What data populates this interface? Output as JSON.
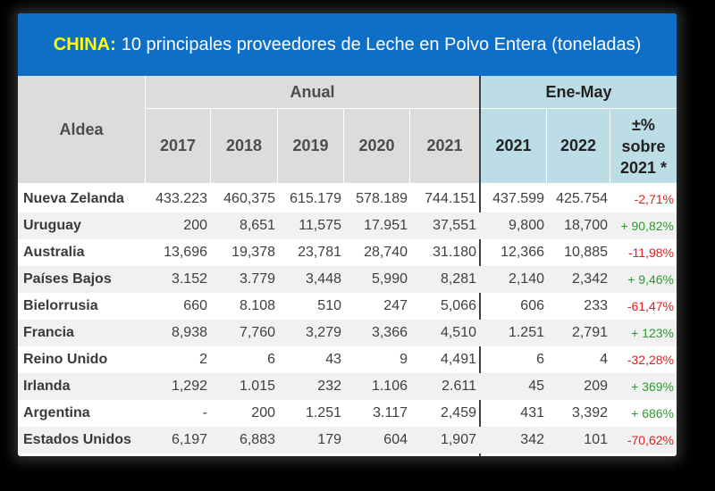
{
  "title": {
    "country": "CHINA:",
    "text": "10 principales proveedores de Leche en Polvo Entera (toneladas)"
  },
  "header": {
    "row_label": "Aldea",
    "annual_group": "Anual",
    "period_group": "Ene-May",
    "annual_years": [
      "2017",
      "2018",
      "2019",
      "2020",
      "2021"
    ],
    "period_years": [
      "2021",
      "2022"
    ],
    "change_label": "±% sobre 2021 *"
  },
  "colors": {
    "title_bg": "#0f6fc6",
    "country": "#ffff00",
    "negative": "#e02020",
    "positive": "#2e9a2e"
  },
  "rows": [
    {
      "name": "Nueva Zelanda",
      "values": [
        "433.223",
        "460,375",
        "615.179",
        "578.189",
        "744.151",
        "437.599",
        "425.754"
      ],
      "change": "-2,71%",
      "trend": "neg"
    },
    {
      "name": "Uruguay",
      "values": [
        "200",
        "8,651",
        "11,575",
        "17.951",
        "37,551",
        "9,800",
        "18,700"
      ],
      "change": "+ 90,82%",
      "trend": "pos"
    },
    {
      "name": "Australia",
      "values": [
        "13,696",
        "19,378",
        "23,781",
        "28,740",
        "31.180",
        "12,366",
        "10,885"
      ],
      "change": "-11,98%",
      "trend": "neg"
    },
    {
      "name": "Países Bajos",
      "values": [
        "3.152",
        "3.779",
        "3,448",
        "5,990",
        "8,281",
        "2,140",
        "2,342"
      ],
      "change": "+ 9,46%",
      "trend": "pos"
    },
    {
      "name": "Bielorrusia",
      "values": [
        "660",
        "8.108",
        "510",
        "247",
        "5,066",
        "606",
        "233"
      ],
      "change": "-61,47%",
      "trend": "neg"
    },
    {
      "name": "Francia",
      "values": [
        "8,938",
        "7,760",
        "3,279",
        "3,366",
        "4,510",
        "1.251",
        "2,791"
      ],
      "change": "+ 123%",
      "trend": "pos"
    },
    {
      "name": "Reino Unido",
      "values": [
        "2",
        "6",
        "43",
        "9",
        "4,491",
        "6",
        "4"
      ],
      "change": "-32,28%",
      "trend": "neg"
    },
    {
      "name": "Irlanda",
      "values": [
        "1,292",
        "1.015",
        "232",
        "1.106",
        "2.611",
        "45",
        "209"
      ],
      "change": "+ 369%",
      "trend": "pos"
    },
    {
      "name": "Argentina",
      "values": [
        "-",
        "200",
        "1.251",
        "3.117",
        "2,459",
        "431",
        "3,392"
      ],
      "change": "+ 686%",
      "trend": "pos"
    },
    {
      "name": "Estados Unidos",
      "values": [
        "6,197",
        "6,883",
        "179",
        "604",
        "1,907",
        "342",
        "101"
      ],
      "change": "-70,62%",
      "trend": "neg"
    }
  ]
}
